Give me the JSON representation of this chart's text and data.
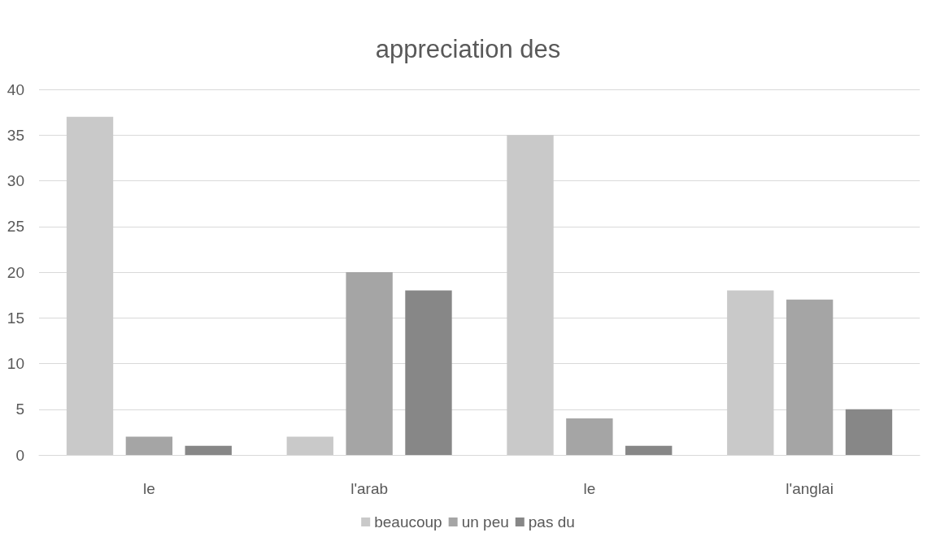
{
  "chart_data": {
    "type": "bar",
    "title": "appreciation des",
    "categories": [
      "le",
      "l'arab",
      "le",
      "l'anglai"
    ],
    "series": [
      {
        "name": "beaucoup",
        "color": "#c9c9c9",
        "values": [
          37,
          2,
          35,
          18
        ]
      },
      {
        "name": "un peu",
        "color": "#a5a5a5",
        "values": [
          2,
          20,
          4,
          17
        ]
      },
      {
        "name": "pas du",
        "color": "#878787",
        "values": [
          1,
          18,
          1,
          5
        ]
      }
    ],
    "ylim": [
      0,
      40
    ],
    "yticks": [
      0,
      5,
      10,
      15,
      20,
      25,
      30,
      35,
      40
    ],
    "grid": "y",
    "legend": "bottom"
  }
}
